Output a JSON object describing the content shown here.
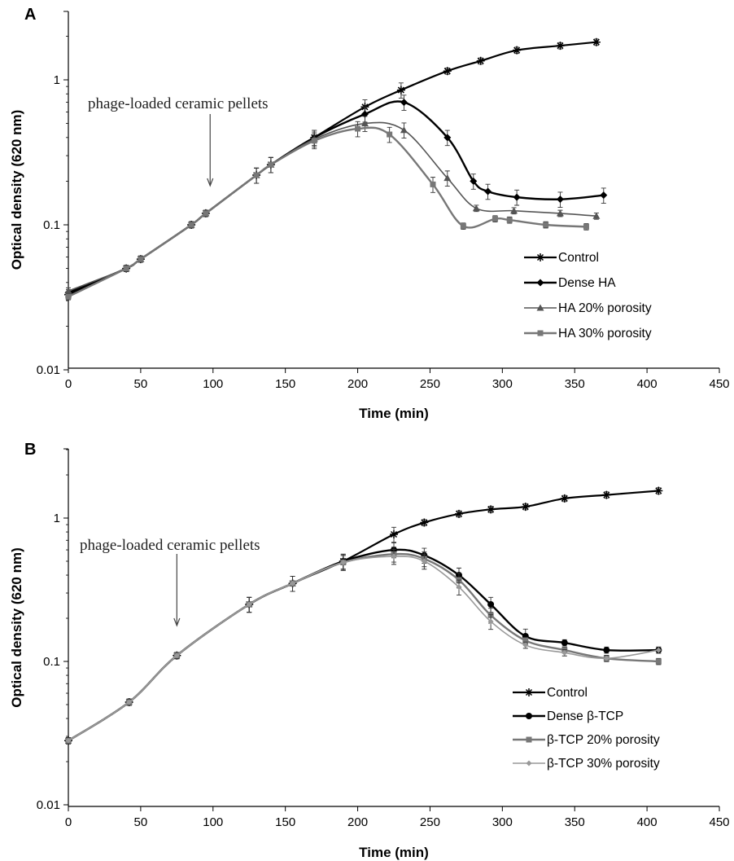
{
  "chart_data": [
    {
      "type": "line",
      "panel": "A",
      "xlabel": "Time (min)",
      "ylabel": "Optical density (620 nm)",
      "xlim": [
        0,
        450
      ],
      "ylim": [
        0.01,
        3
      ],
      "yscale": "log",
      "xticks": [
        "0",
        "50",
        "100",
        "150",
        "200",
        "250",
        "300",
        "350",
        "400",
        "450"
      ],
      "yticks": [
        {
          "v": 0.01,
          "label": "0.01"
        },
        {
          "v": 0.1,
          "label": "0.1"
        },
        {
          "v": 1,
          "label": "1"
        }
      ],
      "annotation": {
        "text": "phage-loaded ceramic pellets",
        "arrow_x": 98
      },
      "legend_position": "bottom-right",
      "series": [
        {
          "name": "Control",
          "color": "#000000",
          "width": 2.2,
          "marker": "star",
          "x": [
            0,
            40,
            50,
            85,
            95,
            130,
            140,
            170,
            205,
            230,
            262,
            285,
            310,
            340,
            365
          ],
          "y": [
            0.033,
            0.05,
            0.058,
            0.1,
            0.12,
            0.22,
            0.26,
            0.4,
            0.65,
            0.85,
            1.15,
            1.35,
            1.6,
            1.72,
            1.82
          ]
        },
        {
          "name": "Dense HA",
          "color": "#000000",
          "width": 2.4,
          "marker": "diamond",
          "x": [
            0,
            40,
            50,
            85,
            95,
            130,
            140,
            170,
            205,
            232,
            262,
            280,
            290,
            310,
            340,
            370
          ],
          "y": [
            0.034,
            0.05,
            0.058,
            0.1,
            0.12,
            0.22,
            0.26,
            0.4,
            0.58,
            0.7,
            0.4,
            0.2,
            0.17,
            0.155,
            0.15,
            0.16
          ]
        },
        {
          "name": "HA 20% porosity",
          "color": "#555555",
          "width": 1.6,
          "marker": "triangle",
          "x": [
            0,
            40,
            50,
            85,
            95,
            130,
            140,
            170,
            205,
            232,
            262,
            282,
            308,
            340,
            365
          ],
          "y": [
            0.035,
            0.05,
            0.058,
            0.1,
            0.12,
            0.22,
            0.26,
            0.39,
            0.5,
            0.45,
            0.21,
            0.13,
            0.125,
            0.12,
            0.115
          ]
        },
        {
          "name": "HA 30% porosity",
          "color": "#777777",
          "width": 2.4,
          "marker": "square",
          "x": [
            0,
            40,
            50,
            85,
            95,
            130,
            140,
            170,
            200,
            222,
            252,
            273,
            295,
            305,
            330,
            358
          ],
          "y": [
            0.032,
            0.05,
            0.058,
            0.1,
            0.12,
            0.22,
            0.26,
            0.38,
            0.46,
            0.42,
            0.19,
            0.098,
            0.11,
            0.108,
            0.1,
            0.097
          ]
        }
      ]
    },
    {
      "type": "line",
      "panel": "B",
      "xlabel": "Time (min)",
      "ylabel": "Optical density (620 nm)",
      "xlim": [
        0,
        450
      ],
      "ylim": [
        0.01,
        3
      ],
      "yscale": "log",
      "xticks": [
        "0",
        "50",
        "100",
        "150",
        "200",
        "250",
        "300",
        "350",
        "400",
        "450"
      ],
      "yticks": [
        {
          "v": 0.01,
          "label": "0.01"
        },
        {
          "v": 0.1,
          "label": "0.1"
        },
        {
          "v": 1,
          "label": "1"
        }
      ],
      "annotation": {
        "text": "phage-loaded ceramic pellets",
        "arrow_x": 75
      },
      "legend_position": "bottom-right",
      "series": [
        {
          "name": "Control",
          "color": "#000000",
          "width": 2.2,
          "marker": "star",
          "x": [
            0,
            42,
            75,
            125,
            155,
            190,
            225,
            246,
            270,
            292,
            316,
            343,
            372,
            408
          ],
          "y": [
            0.028,
            0.052,
            0.11,
            0.25,
            0.35,
            0.5,
            0.77,
            0.93,
            1.07,
            1.15,
            1.2,
            1.37,
            1.45,
            1.55
          ]
        },
        {
          "name": "Dense β-TCP",
          "color": "#000000",
          "width": 2.4,
          "marker": "circle",
          "x": [
            0,
            42,
            75,
            125,
            155,
            190,
            225,
            246,
            270,
            292,
            316,
            343,
            372,
            408
          ],
          "y": [
            0.028,
            0.052,
            0.11,
            0.25,
            0.35,
            0.5,
            0.6,
            0.55,
            0.4,
            0.25,
            0.15,
            0.135,
            0.12,
            0.12
          ]
        },
        {
          "name": "β-TCP 20% porosity",
          "color": "#777777",
          "width": 2.4,
          "marker": "square",
          "x": [
            0,
            42,
            75,
            125,
            155,
            190,
            225,
            246,
            270,
            292,
            316,
            343,
            372,
            408
          ],
          "y": [
            0.028,
            0.052,
            0.11,
            0.25,
            0.35,
            0.49,
            0.56,
            0.52,
            0.37,
            0.21,
            0.14,
            0.12,
            0.105,
            0.1
          ]
        },
        {
          "name": "β-TCP 30% porosity",
          "color": "#999999",
          "width": 1.6,
          "marker": "small-diamond",
          "x": [
            0,
            42,
            75,
            125,
            155,
            190,
            225,
            246,
            270,
            292,
            316,
            343,
            372,
            408
          ],
          "y": [
            0.028,
            0.052,
            0.11,
            0.25,
            0.35,
            0.49,
            0.54,
            0.5,
            0.33,
            0.19,
            0.13,
            0.115,
            0.105,
            0.12
          ]
        }
      ]
    }
  ]
}
